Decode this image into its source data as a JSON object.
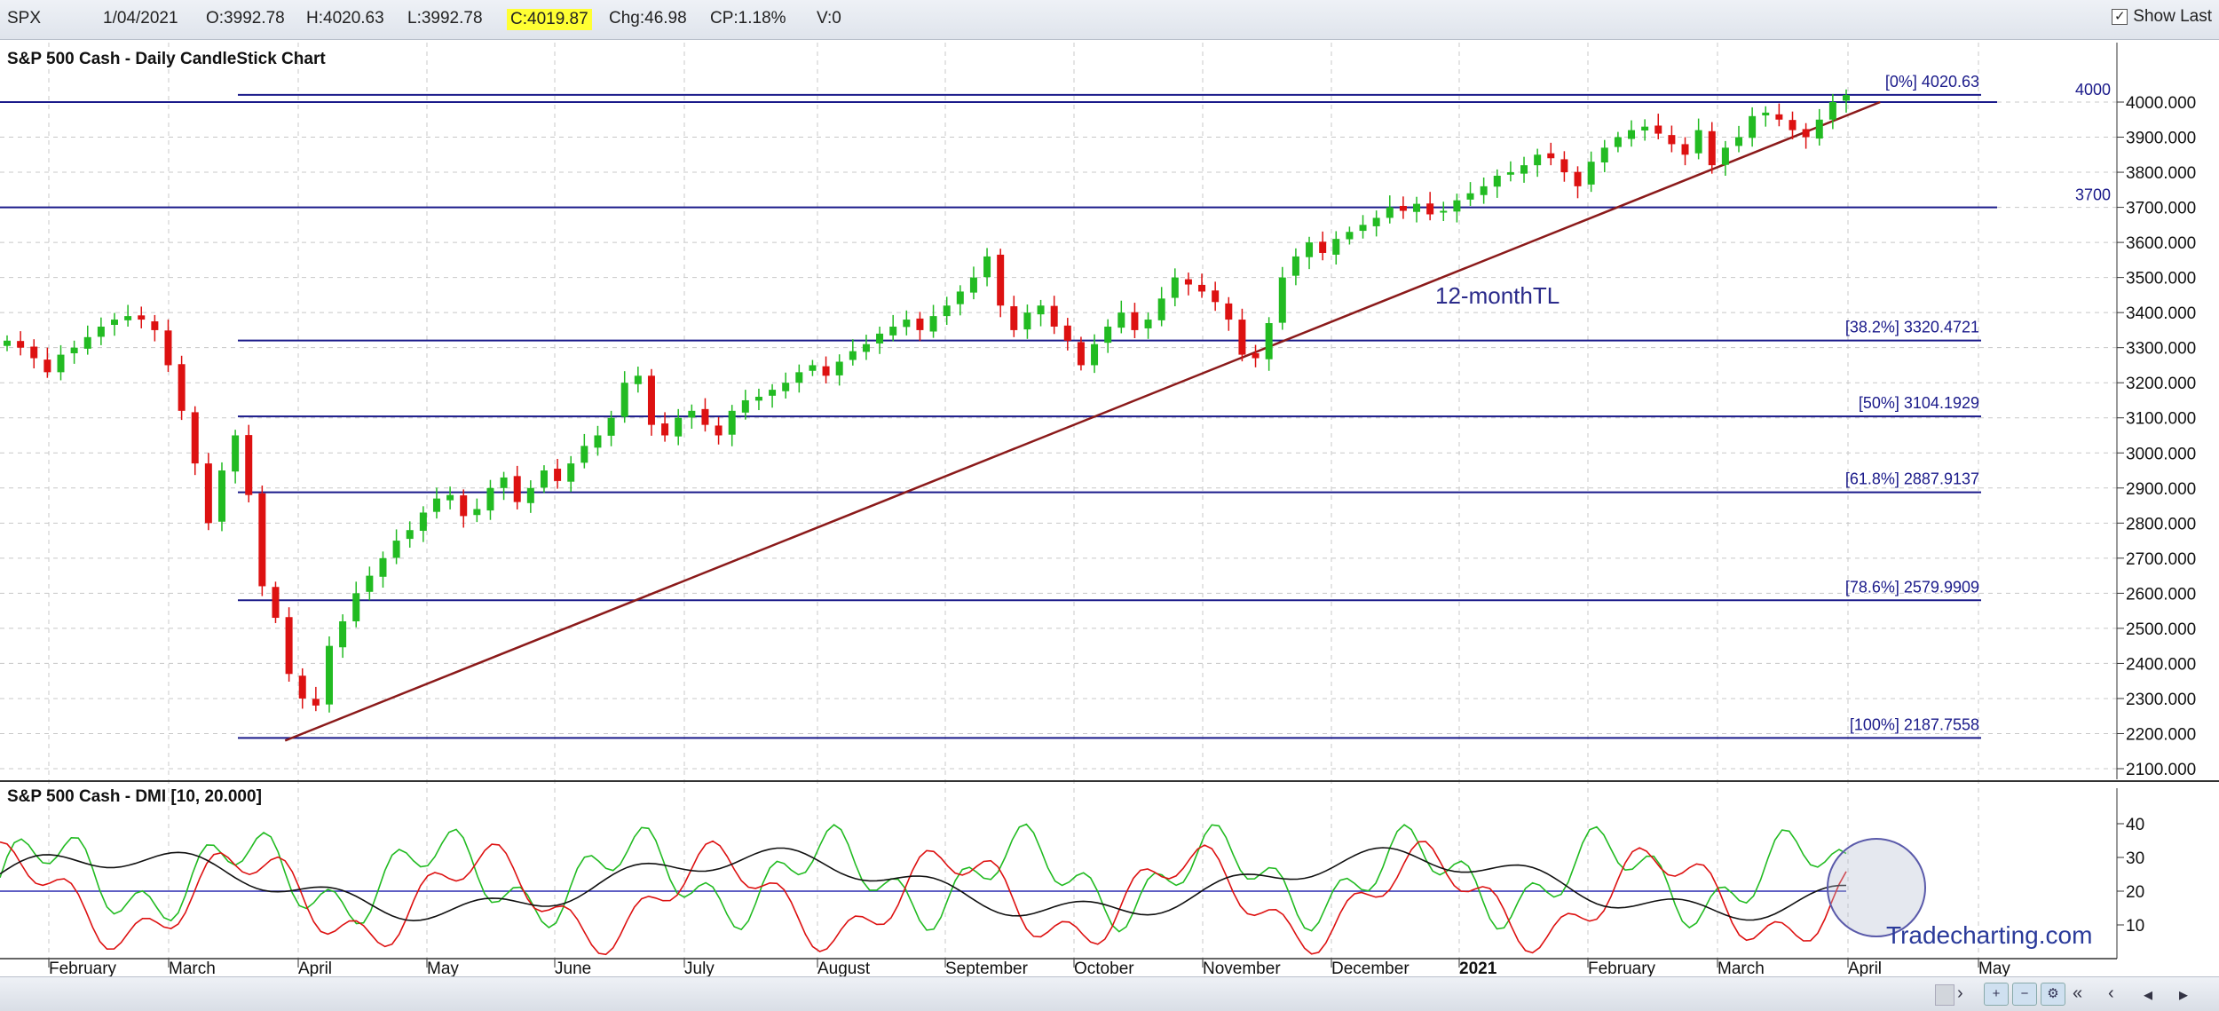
{
  "toolbar": {
    "symbol": "SPX",
    "date": "1/04/2021",
    "open": "O:3992.78",
    "high": "H:4020.63",
    "low": "L:3992.78",
    "close": "C:4019.87",
    "change": "Chg:46.98",
    "change_pct": "CP:1.18%",
    "volume": "V:0",
    "show_last_label": "Show Last",
    "show_last_checked": "✓"
  },
  "chart_data": [
    {
      "type": "candlestick",
      "title": "S&P 500 Cash - Daily CandleStick Chart",
      "ylim": [
        2100,
        4100
      ],
      "ytick_labels": [
        "4000.000",
        "3900.000",
        "3800.000",
        "3700.000",
        "3600.000",
        "3500.000",
        "3400.000",
        "3300.000",
        "3200.000",
        "3100.000",
        "3000.000",
        "2900.000",
        "2800.000",
        "2700.000",
        "2600.000",
        "2500.000",
        "2400.000",
        "2300.000",
        "2200.000",
        "2100.000"
      ],
      "x_month_labels": [
        "February",
        "March",
        "April",
        "May",
        "June",
        "July",
        "August",
        "September",
        "October",
        "November",
        "December",
        "2021",
        "February",
        "March",
        "April",
        "May"
      ],
      "horizontal_lines": [
        {
          "label": "4000",
          "value": 4000
        },
        {
          "label": "3700",
          "value": 3700
        }
      ],
      "fibonacci_levels": [
        {
          "label": "[0%] 4020.63",
          "value": 4020.63
        },
        {
          "label": "[38.2%] 3320.4721",
          "value": 3320.4721
        },
        {
          "label": "[50%] 3104.1929",
          "value": 3104.1929
        },
        {
          "label": "[61.8%] 2887.9137",
          "value": 2887.9137
        },
        {
          "label": "[78.6%] 2579.9909",
          "value": 2579.9909
        },
        {
          "label": "[100%] 2187.7558",
          "value": 2187.7558
        }
      ],
      "trendline": {
        "label": "12-monthTL",
        "start": {
          "date": "2020-03-23",
          "value": 2180
        },
        "end": {
          "date": "2021-04-05",
          "value": 4000
        }
      },
      "closes_sample": [
        3320,
        3300,
        3270,
        3230,
        3280,
        3300,
        3330,
        3360,
        3380,
        3390,
        3380,
        3350,
        3250,
        3120,
        2970,
        2800,
        2950,
        3050,
        2880,
        2620,
        2530,
        2370,
        2300,
        2280,
        2450,
        2520,
        2600,
        2650,
        2700,
        2750,
        2780,
        2830,
        2870,
        2880,
        2820,
        2840,
        2900,
        2930,
        2860,
        2900,
        2950,
        2920,
        2970,
        3020,
        3050,
        3100,
        3200,
        3220,
        3080,
        3050,
        3100,
        3120,
        3080,
        3050,
        3120,
        3150,
        3160,
        3180,
        3200,
        3230,
        3250,
        3220,
        3260,
        3290,
        3310,
        3340,
        3360,
        3380,
        3350,
        3390,
        3420,
        3460,
        3500,
        3560,
        3420,
        3350,
        3400,
        3420,
        3360,
        3320,
        3250,
        3310,
        3360,
        3400,
        3350,
        3380,
        3440,
        3500,
        3480,
        3460,
        3430,
        3380,
        3280,
        3270,
        3370,
        3500,
        3560,
        3600,
        3570,
        3610,
        3630,
        3650,
        3670,
        3700,
        3690,
        3710,
        3680,
        3690,
        3720,
        3740,
        3760,
        3790,
        3800,
        3820,
        3850,
        3840,
        3800,
        3760,
        3830,
        3870,
        3900,
        3920,
        3930,
        3910,
        3880,
        3850,
        3920,
        3820,
        3870,
        3900,
        3960,
        3970,
        3950,
        3920,
        3900,
        3950,
        4000,
        4020
      ]
    },
    {
      "type": "line",
      "title": "S&P 500 Cash - DMI [10, 20.000]",
      "ylim": [
        0,
        50
      ],
      "ytick_labels": [
        "40",
        "30",
        "20",
        "10"
      ],
      "horizontal_lines": [
        {
          "value": 20
        }
      ],
      "series": []
    }
  ],
  "watermark": "Tradecharting.com",
  "bottom_nav": [
    "›",
    "«",
    "‹",
    "◂",
    "▸"
  ],
  "colors": {
    "up": "#22bb22",
    "down": "#dd1111",
    "fib": "#1a1a8a",
    "trend": "#8b1a1a",
    "grid": "#c8c8c8",
    "adx": "#111111"
  }
}
